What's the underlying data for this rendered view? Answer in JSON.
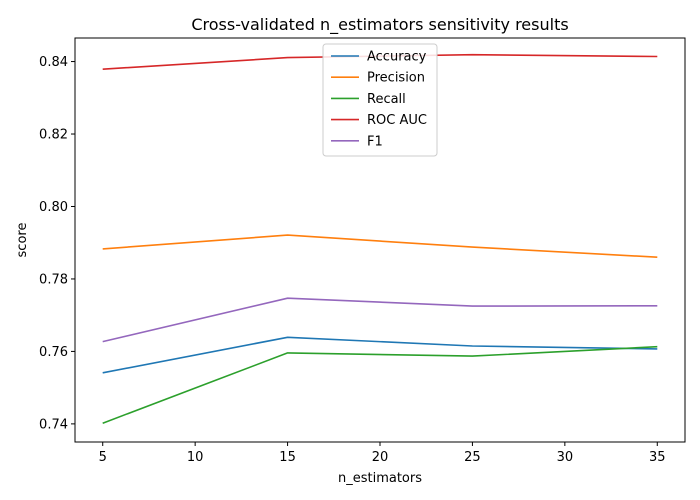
{
  "chart_data": {
    "type": "line",
    "title": "Cross-validated n_estimators sensitivity results",
    "xlabel": "n_estimators",
    "ylabel": "score",
    "x": [
      5,
      15,
      25,
      35
    ],
    "xticks": [
      5,
      10,
      15,
      20,
      25,
      30,
      35
    ],
    "yticks": [
      0.74,
      0.76,
      0.78,
      0.8,
      0.82,
      0.84
    ],
    "xlim": [
      3.5,
      36.5
    ],
    "ylim": [
      0.735,
      0.8465
    ],
    "grid": false,
    "legend_position": "top-center",
    "series": [
      {
        "name": "Accuracy",
        "color": "#1f77b4",
        "values": [
          0.7541,
          0.7639,
          0.7615,
          0.7607
        ]
      },
      {
        "name": "Precision",
        "color": "#ff7f0e",
        "values": [
          0.7883,
          0.7921,
          0.7888,
          0.786
        ]
      },
      {
        "name": "Recall",
        "color": "#2ca02c",
        "values": [
          0.7402,
          0.7596,
          0.7587,
          0.7613
        ]
      },
      {
        "name": "ROC AUC",
        "color": "#d62728",
        "values": [
          0.8379,
          0.8411,
          0.8419,
          0.8414
        ]
      },
      {
        "name": "F1",
        "color": "#9467bd",
        "values": [
          0.7627,
          0.7747,
          0.7725,
          0.7726
        ]
      }
    ]
  }
}
